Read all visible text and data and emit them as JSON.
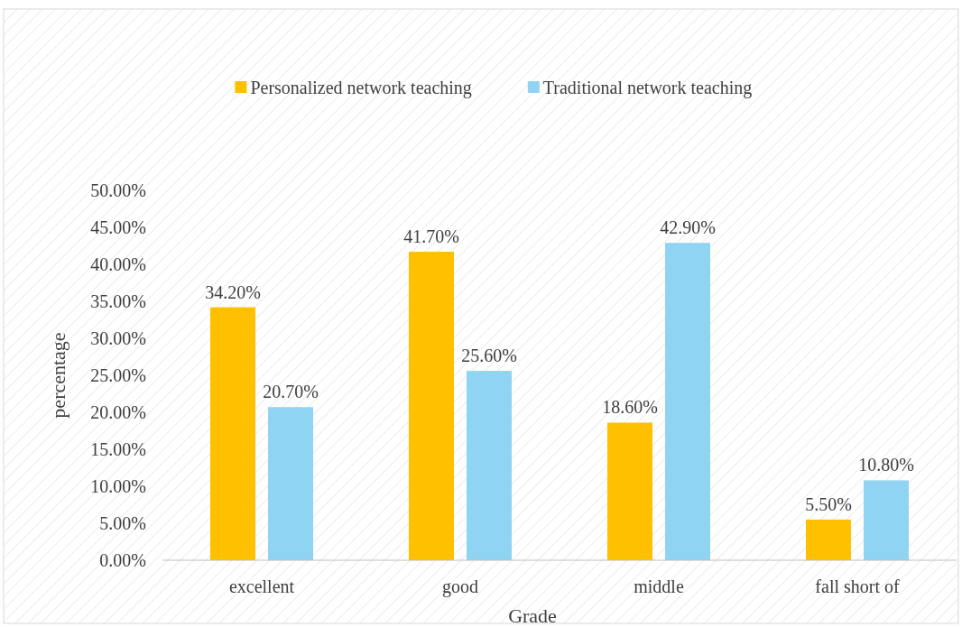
{
  "chart_data": {
    "type": "bar",
    "xlabel": "Grade",
    "ylabel": "percentage",
    "categories": [
      "excellent",
      "good",
      "middle",
      "fall short of"
    ],
    "series": [
      {
        "name": "Personalized network teaching",
        "color": "#ffc000",
        "values": [
          34.2,
          41.7,
          18.6,
          5.5
        ],
        "value_labels": [
          "34.20%",
          "41.70%",
          "18.60%",
          "5.50%"
        ]
      },
      {
        "name": "Traditional network teaching",
        "color": "#8fd4f2",
        "values": [
          20.7,
          25.6,
          42.9,
          10.8
        ],
        "value_labels": [
          "20.70%",
          "25.60%",
          "42.90%",
          "10.80%"
        ]
      }
    ],
    "ylim": [
      0,
      50
    ],
    "yticks": [
      {
        "value": 0,
        "label": "0.00%"
      },
      {
        "value": 5,
        "label": "5.00%"
      },
      {
        "value": 10,
        "label": "10.00%"
      },
      {
        "value": 15,
        "label": "15.00%"
      },
      {
        "value": 20,
        "label": "20.00%"
      },
      {
        "value": 25,
        "label": "25.00%"
      },
      {
        "value": 30,
        "label": "30.00%"
      },
      {
        "value": 35,
        "label": "35.00%"
      },
      {
        "value": 40,
        "label": "40.00%"
      },
      {
        "value": 45,
        "label": "45.00%"
      },
      {
        "value": 50,
        "label": "50.00%"
      }
    ],
    "legend": "top"
  }
}
